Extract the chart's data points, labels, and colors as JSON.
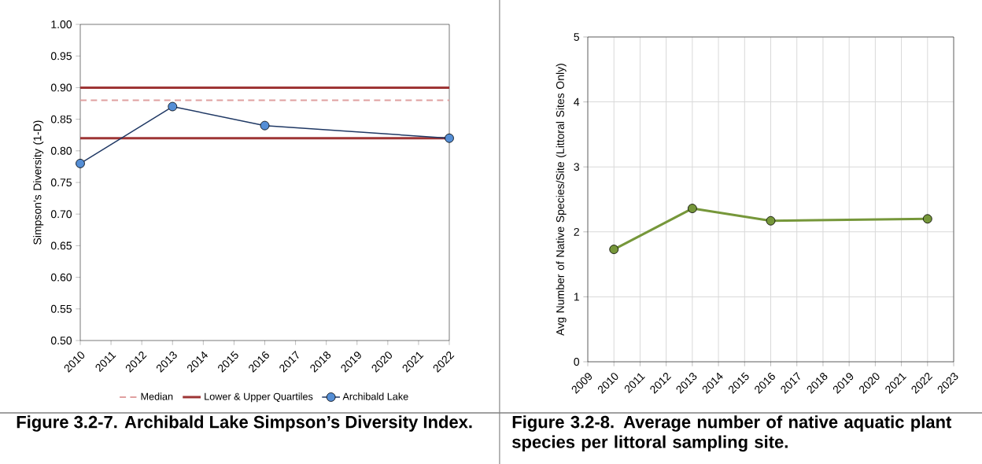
{
  "chart_data": [
    {
      "type": "line",
      "ylabel": "Simpson's Diversity (1-D)",
      "x": [
        2010,
        2013,
        2016,
        2022
      ],
      "series": [
        {
          "name": "Archibald Lake",
          "color": "#1f3864",
          "values": [
            0.78,
            0.87,
            0.84,
            0.82
          ]
        }
      ],
      "xlim": [
        2010,
        2022
      ],
      "xticks": [
        2010,
        2011,
        2012,
        2013,
        2014,
        2015,
        2016,
        2017,
        2018,
        2019,
        2020,
        2021,
        2022
      ],
      "ylim": [
        0.5,
        1.0
      ],
      "yticks": [
        {
          "value": 0.5,
          "label": "0.50"
        },
        {
          "value": 0.55,
          "label": "0.55"
        },
        {
          "value": 0.6,
          "label": "0.60"
        },
        {
          "value": 0.65,
          "label": "0.65"
        },
        {
          "value": 0.7,
          "label": "0.70"
        },
        {
          "value": 0.75,
          "label": "0.75"
        },
        {
          "value": 0.8,
          "label": "0.80"
        },
        {
          "value": 0.85,
          "label": "0.85"
        },
        {
          "value": 0.9,
          "label": "0.90"
        },
        {
          "value": 0.95,
          "label": "0.95"
        },
        {
          "value": 1.0,
          "label": "1.00"
        }
      ],
      "ref_lines": [
        {
          "axis": "y",
          "value": 0.88,
          "label": "Median",
          "color": "#e0a0a0",
          "line_style": "dashed"
        },
        {
          "axis": "y",
          "value": 0.9,
          "label": "Lower & Upper Quartiles",
          "color": "#9e3535",
          "line_style": "solid"
        },
        {
          "axis": "y",
          "value": 0.82,
          "color": "#9e3535",
          "line_style": "solid"
        }
      ],
      "marker": "circle",
      "legend": "bottom",
      "annotations": [
        "Figure 3.2-7.  Archibald Lake Simpson’s Diversity Index."
      ]
    },
    {
      "type": "line",
      "ylabel": "Avg Number of Native Species/Site (Littoral Sites Only)",
      "x": [
        2010,
        2013,
        2016,
        2022
      ],
      "series": [
        {
          "color": "#76973a",
          "values": [
            1.73,
            2.36,
            2.17,
            2.2
          ]
        }
      ],
      "xlim": [
        2009,
        2023
      ],
      "xticks": [
        2009,
        2010,
        2011,
        2012,
        2013,
        2014,
        2015,
        2016,
        2017,
        2018,
        2019,
        2020,
        2021,
        2022,
        2023
      ],
      "ylim": [
        0,
        5
      ],
      "yticks": [
        0,
        1,
        2,
        3,
        4,
        5
      ],
      "grid": true,
      "marker": "circle",
      "annotations": [
        "Figure 3.2-8.  Average number of native aquatic plant species per littoral sampling site."
      ]
    }
  ]
}
